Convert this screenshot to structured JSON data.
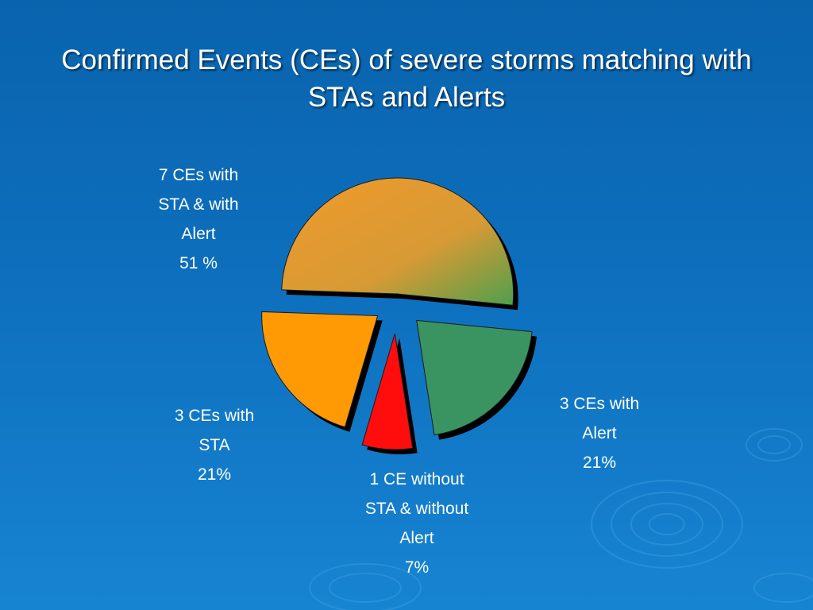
{
  "title": {
    "line1": "Confirmed Events (CEs) of severe storms matching with",
    "line2": "STAs and Alerts"
  },
  "chart_data": {
    "type": "pie",
    "title": "Confirmed Events (CEs) of severe storms matching with STAs and Alerts",
    "legend": "none",
    "slices": [
      {
        "label_lines": [
          "7 CEs with",
          "STA & with",
          "Alert",
          "51 %"
        ],
        "value": 51,
        "count": 7,
        "color": "#e89a2e",
        "color2": "#56a14a"
      },
      {
        "label_lines": [
          "3 CEs with",
          "Alert",
          "21%"
        ],
        "value": 21,
        "count": 3,
        "color": "#3a9462"
      },
      {
        "label_lines": [
          "1 CE without",
          "STA & without",
          "Alert",
          "7%"
        ],
        "value": 7,
        "count": 1,
        "color": "#ff0d0d"
      },
      {
        "label_lines": [
          "3 CEs with",
          "STA",
          "21%"
        ],
        "value": 21,
        "count": 3,
        "color": "#ff9a05"
      }
    ]
  }
}
